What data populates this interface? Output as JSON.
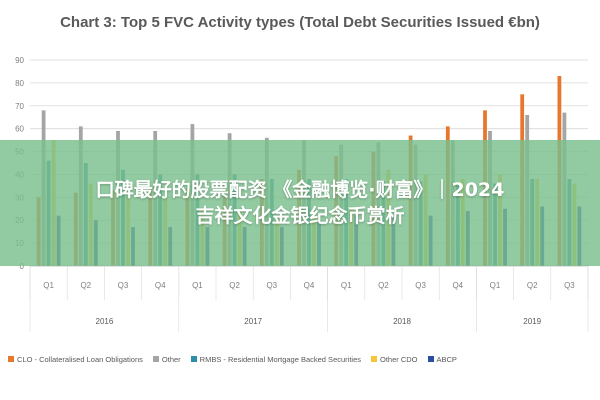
{
  "chart_data": {
    "type": "bar",
    "title": "Chart 3: Top 5 FVC Activity types (Total Debt Securities Issued €bn)",
    "ylim": [
      0,
      90
    ],
    "yticks": [
      0,
      10,
      20,
      30,
      40,
      50,
      60,
      70,
      80,
      90
    ],
    "categories": [
      "Q1",
      "Q2",
      "Q3",
      "Q4",
      "Q1",
      "Q2",
      "Q3",
      "Q4",
      "Q1",
      "Q2",
      "Q3",
      "Q4",
      "Q1",
      "Q2",
      "Q3"
    ],
    "year_groups": [
      {
        "label": "2016",
        "quarters": 4
      },
      {
        "label": "2017",
        "quarters": 4
      },
      {
        "label": "2018",
        "quarters": 4
      },
      {
        "label": "2019",
        "quarters": 3
      }
    ],
    "series": [
      {
        "name": "CLO - Collateralised Loan Obligations",
        "color": "#e8772e",
        "values": [
          30,
          32,
          33,
          34,
          34,
          36,
          38,
          42,
          48,
          50,
          57,
          61,
          68,
          75,
          83
        ]
      },
      {
        "name": "Other",
        "color": "#a5a5a5",
        "values": [
          68,
          61,
          59,
          59,
          62,
          58,
          56,
          55,
          53,
          54,
          53,
          55,
          59,
          66,
          67
        ]
      },
      {
        "name": "RMBS - Residential Mortgage Backed Securities",
        "color": "#2f8fa8",
        "values": [
          46,
          45,
          42,
          40,
          40,
          40,
          38,
          38,
          38,
          37,
          37,
          36,
          36,
          38,
          38
        ]
      },
      {
        "name": "Other CDO",
        "color": "#f5c63a",
        "values": [
          55,
          36,
          30,
          30,
          25,
          24,
          22,
          24,
          26,
          42,
          40,
          38,
          40,
          38,
          36
        ]
      },
      {
        "name": "ABCP",
        "color": "#2b4ea2",
        "values": [
          22,
          20,
          17,
          17,
          17,
          17,
          17,
          20,
          22,
          22,
          22,
          24,
          25,
          26,
          26
        ]
      }
    ],
    "legend": "bottom",
    "grid": true
  },
  "overlay": {
    "line1": "口碑最好的股票配资 《金融博览·财富》｜2024",
    "line2": "吉祥文化金银纪念币赏析"
  }
}
